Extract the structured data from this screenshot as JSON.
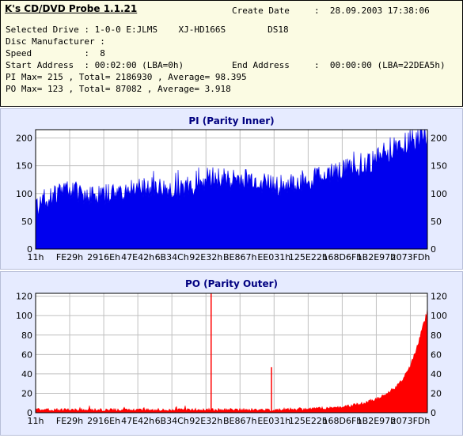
{
  "app": {
    "title": "K's CD/DVD Probe 1.1.21"
  },
  "info": {
    "create_date_label": "Create Date",
    "create_date_value": ":  28.09.2003 17:38:06",
    "drive_line": "Selected Drive : 1-0-0 E:JLMS    XJ-HD166S        DS18",
    "manufacturer_line": "Disc Manufacturer :",
    "speed_line": "Speed          :  8",
    "start_line": "Start Address  : 00:02:00 (LBA=0h)",
    "end_label": "End Address",
    "end_value": ":  00:00:00 (LBA=22DEA5h)",
    "pi_line": "PI Max= 215 , Total= 2186930 , Average= 98.395",
    "po_line": "PO Max= 123 , Total= 87082 , Average= 3.918"
  },
  "chart_data": [
    {
      "type": "area",
      "title": "PI (Parity Inner)",
      "color": "#0000ee",
      "ylim": [
        0,
        215
      ],
      "yticks": [
        0,
        50,
        100,
        150,
        200
      ],
      "xticks": [
        "11h",
        "FE29h",
        "2916Eh",
        "47E42h",
        "6B34Ch",
        "92E32h",
        "BE867h",
        "EE031h",
        "125E22h",
        "168D6Fh",
        "1B2E97h",
        "2073FDh"
      ],
      "grid": true,
      "x_profile": [
        0,
        0.01,
        0.03,
        0.05,
        0.08,
        0.1,
        0.13,
        0.16,
        0.2,
        0.25,
        0.3,
        0.35,
        0.4,
        0.43,
        0.45,
        0.5,
        0.55,
        0.6,
        0.62,
        0.65,
        0.7,
        0.75,
        0.8,
        0.85,
        0.9,
        0.95,
        0.98,
        1.0
      ],
      "values": [
        70,
        78,
        88,
        100,
        110,
        105,
        98,
        96,
        100,
        108,
        110,
        105,
        112,
        125,
        130,
        125,
        124,
        118,
        114,
        116,
        125,
        138,
        145,
        155,
        178,
        195,
        205,
        210
      ]
    },
    {
      "type": "area",
      "title": "PO (Parity Outer)",
      "color": "#ff0000",
      "ylim": [
        0,
        123
      ],
      "yticks": [
        0,
        20,
        40,
        60,
        80,
        100,
        120
      ],
      "xticks": [
        "11h",
        "FE29h",
        "2916Eh",
        "47E42h",
        "6B34Ch",
        "92E32h",
        "BE867h",
        "EE031h",
        "125E22h",
        "168D6Fh",
        "1B2E97h",
        "2073FDh"
      ],
      "grid": true,
      "x_profile": [
        0,
        0.2,
        0.4,
        0.6,
        0.7,
        0.75,
        0.8,
        0.84,
        0.88,
        0.92,
        0.95,
        0.97,
        0.99,
        1.0
      ],
      "values": [
        3,
        3,
        3,
        3,
        4,
        5,
        7,
        10,
        16,
        26,
        42,
        62,
        90,
        105
      ],
      "spikes": [
        {
          "x": 0.448,
          "value": 123
        },
        {
          "x": 0.602,
          "value": 47
        }
      ]
    }
  ]
}
